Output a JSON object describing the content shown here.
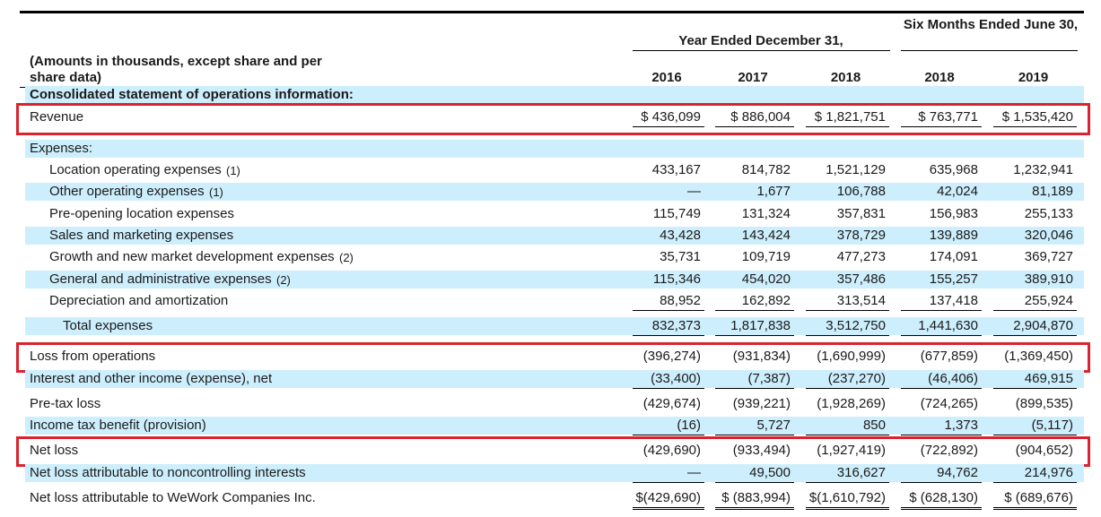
{
  "header": {
    "caption": "(Amounts in thousands, except share and per share data)",
    "group_year": "Year Ended December 31,",
    "group_six": "Six Months Ended June 30,",
    "columns": [
      "2016",
      "2017",
      "2018",
      "2018",
      "2019"
    ]
  },
  "table": {
    "rows": [
      {
        "label": "Consolidated statement of operations information:"
      },
      {
        "label": "Revenue",
        "values": [
          "$ 436,099",
          "$ 886,004",
          "$ 1,821,751",
          "$ 763,771",
          "$ 1,535,420"
        ]
      },
      {
        "label": "Expenses:"
      },
      {
        "label": "Location operating expenses",
        "note": "(1)",
        "values": [
          "433,167",
          "814,782",
          "1,521,129",
          "635,968",
          "1,232,941"
        ]
      },
      {
        "label": "Other operating expenses",
        "note": "(1)",
        "values": [
          "—",
          "1,677",
          "106,788",
          "42,024",
          "81,189"
        ]
      },
      {
        "label": "Pre-opening location expenses",
        "values": [
          "115,749",
          "131,324",
          "357,831",
          "156,983",
          "255,133"
        ]
      },
      {
        "label": "Sales and marketing expenses",
        "values": [
          "43,428",
          "143,424",
          "378,729",
          "139,889",
          "320,046"
        ]
      },
      {
        "label": "Growth and new market development expenses",
        "note": "(2)",
        "values": [
          "35,731",
          "109,719",
          "477,273",
          "174,091",
          "369,727"
        ]
      },
      {
        "label": "General and administrative expenses",
        "note": "(2)",
        "values": [
          "115,346",
          "454,020",
          "357,486",
          "155,257",
          "389,910"
        ]
      },
      {
        "label": "Depreciation and amortization",
        "values": [
          "88,952",
          "162,892",
          "313,514",
          "137,418",
          "255,924"
        ]
      },
      {
        "label": "Total expenses",
        "values": [
          "832,373",
          "1,817,838",
          "3,512,750",
          "1,441,630",
          "2,904,870"
        ]
      },
      {
        "label": "Loss from operations",
        "values": [
          "(396,274)",
          "(931,834)",
          "(1,690,999)",
          "(677,859)",
          "(1,369,450)"
        ]
      },
      {
        "label": "Interest and other income (expense), net",
        "values": [
          "(33,400)",
          "(7,387)",
          "(237,270)",
          "(46,406)",
          "469,915"
        ]
      },
      {
        "label": "Pre-tax loss",
        "values": [
          "(429,674)",
          "(939,221)",
          "(1,928,269)",
          "(724,265)",
          "(899,535)"
        ]
      },
      {
        "label": "Income tax benefit (provision)",
        "values": [
          "(16)",
          "5,727",
          "850",
          "1,373",
          "(5,117)"
        ]
      },
      {
        "label": "Net loss",
        "values": [
          "(429,690)",
          "(933,494)",
          "(1,927,419)",
          "(722,892)",
          "(904,652)"
        ]
      },
      {
        "label": "Net loss attributable to noncontrolling interests",
        "values": [
          "—",
          "49,500",
          "316,627",
          "94,762",
          "214,976"
        ]
      },
      {
        "label": "Net loss attributable to WeWork Companies Inc.",
        "values": [
          "$(429,690)",
          "$ (883,994)",
          "$(1,610,792)",
          "$ (628,130)",
          "$ (689,676)"
        ]
      }
    ]
  }
}
